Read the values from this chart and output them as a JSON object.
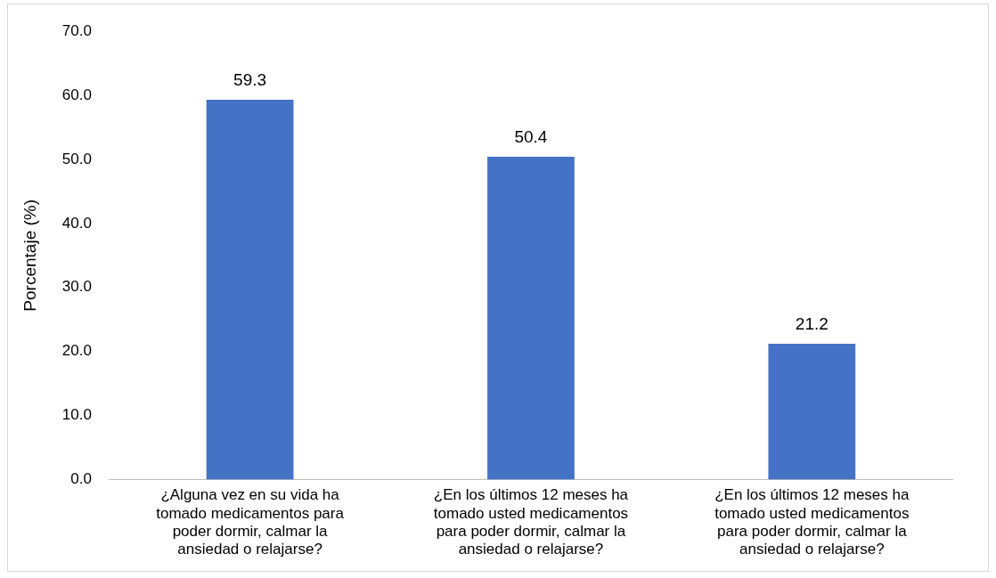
{
  "chart_data": {
    "type": "bar",
    "ylabel": "Porcentaje (%)",
    "categories": [
      "¿Alguna vez en su vida ha tomado medicamentos para poder dormir, calmar la ansiedad o relajarse?",
      "¿En los últimos 12 meses ha tomado usted medicamentos para poder dormir, calmar la ansiedad o relajarse?",
      "¿En los últimos 12 meses ha tomado usted medicamentos para poder dormir, calmar la ansiedad o relajarse?"
    ],
    "values": [
      59.3,
      50.4,
      21.2
    ],
    "color": "#4472c4",
    "ylim": [
      0,
      70
    ],
    "yticks": [
      {
        "value": 0,
        "label": "0.0"
      },
      {
        "value": 10,
        "label": "10.0"
      },
      {
        "value": 20,
        "label": "20.0"
      },
      {
        "value": 30,
        "label": "30.0"
      },
      {
        "value": 40,
        "label": "40.0"
      },
      {
        "value": 50,
        "label": "50.0"
      },
      {
        "value": 60,
        "label": "60.0"
      },
      {
        "value": 70,
        "label": "70.0"
      }
    ],
    "data_labels": true,
    "grid": false,
    "legend": false
  }
}
